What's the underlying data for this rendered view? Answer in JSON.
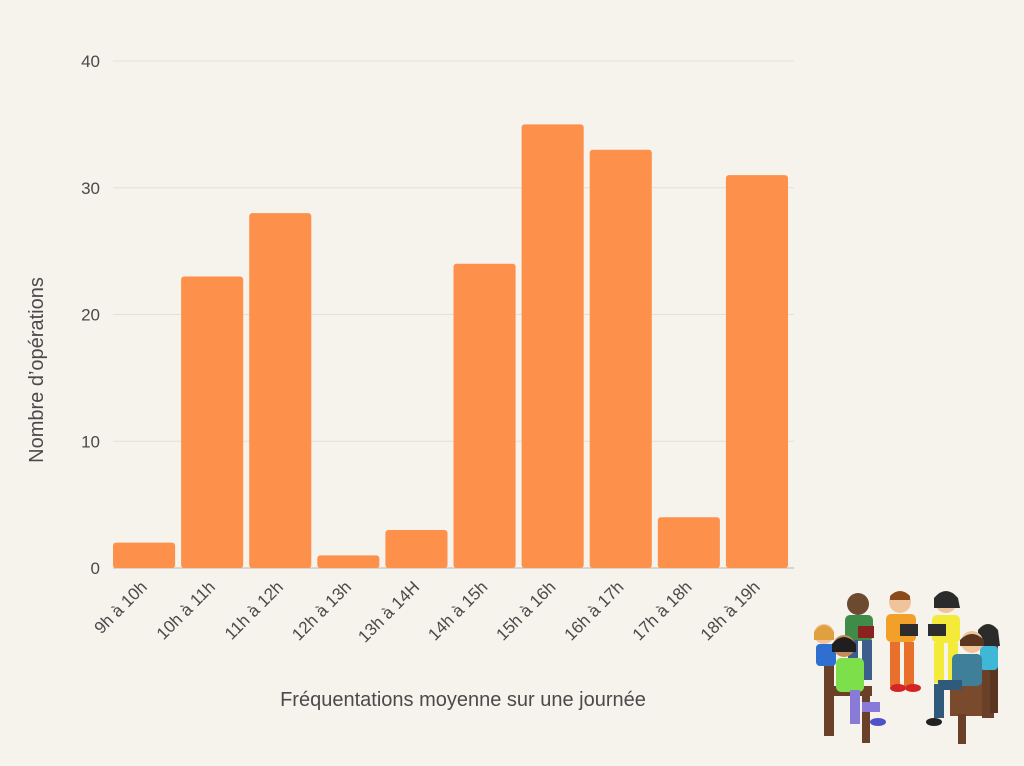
{
  "chart_data": {
    "type": "bar",
    "title": "",
    "xlabel": "Fréquentations moyenne sur une journée",
    "ylabel": "Nombre d’opérations",
    "categories": [
      "9h à 10h",
      "10h à 11h",
      "11h à 12h",
      "12h à 13h",
      "13h à 14H",
      "14h à 15h",
      "15h à 16h",
      "16h à 17h",
      "17h à 18h",
      "18h à 19h"
    ],
    "values": [
      2,
      23,
      28,
      1,
      3,
      24,
      35,
      33,
      4,
      31
    ],
    "ylim": [
      0,
      40
    ],
    "yticks": [
      0,
      10,
      20,
      30,
      40
    ],
    "grid": true,
    "legend": "none",
    "colors": {
      "bar": "#fd914c",
      "background": "#f6f3ec",
      "text": "#4a4a4a",
      "grid": "#e3e0d8"
    }
  },
  "illustration": {
    "icon": "people-circle-reading-illustration"
  }
}
